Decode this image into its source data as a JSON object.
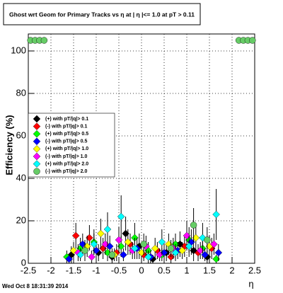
{
  "chart_data": {
    "type": "errorbar",
    "title": "Ghost wrt Geom for Primary Tracks vs  η at | η |<= 1.0 at pT > 0.11",
    "x_label": "η",
    "y_label": "Efficiency (%)",
    "footer": "Wed Oct  8 18:31:39 2014",
    "xlim": [
      -2.5,
      2.5
    ],
    "xticks": [
      -2.5,
      -2,
      -1.5,
      -1,
      -0.5,
      0,
      0.5,
      1,
      1.5,
      2,
      2.5
    ],
    "ylim": [
      0,
      108
    ],
    "yticks": [
      0,
      20,
      40,
      60,
      80,
      100
    ],
    "grid": true,
    "series": [
      {
        "name": "(+) with pT/|q|> 0.1",
        "color": "#000000",
        "marker": "diamond",
        "x": [
          -1.55,
          -1.25,
          -0.95,
          -0.65,
          -0.35,
          -0.05,
          0.25,
          0.55,
          0.85,
          1.15,
          1.45
        ],
        "values": [
          4,
          6,
          5,
          3,
          14,
          8,
          2,
          5,
          9,
          6,
          3
        ],
        "errors": [
          4,
          5,
          4,
          3,
          8,
          6,
          2,
          4,
          6,
          5,
          3
        ]
      },
      {
        "name": "(-) with pT/|q|> 0.1",
        "color": "#ff0000",
        "marker": "diamond",
        "x": [
          -1.45,
          -1.15,
          -0.85,
          -0.55,
          -0.25,
          0.05,
          0.35,
          0.65,
          0.95,
          1.25,
          1.55
        ],
        "values": [
          13,
          12,
          7,
          5,
          9,
          4,
          6,
          3,
          8,
          5,
          7
        ],
        "errors": [
          6,
          6,
          5,
          4,
          5,
          3,
          4,
          3,
          5,
          4,
          5
        ]
      },
      {
        "name": "(+) with pT/|q|> 0.5",
        "color": "#00ff00",
        "marker": "diamond",
        "x": [
          -1.65,
          -1.35,
          -1.05,
          -0.75,
          -0.45,
          -0.15,
          0.15,
          0.45,
          0.75,
          1.05,
          1.35,
          1.65
        ],
        "values": [
          3,
          7,
          10,
          5,
          8,
          12,
          6,
          4,
          9,
          11,
          7,
          2
        ],
        "errors": [
          3,
          5,
          6,
          4,
          5,
          7,
          4,
          3,
          5,
          6,
          5,
          2
        ]
      },
      {
        "name": "(-) with pT/|q|> 0.5",
        "color": "#0000ff",
        "marker": "diamond",
        "x": [
          -1.6,
          -1.3,
          -1.0,
          -0.7,
          -0.4,
          -0.1,
          0.2,
          0.5,
          0.8,
          1.1,
          1.4,
          1.7
        ],
        "values": [
          2,
          9,
          6,
          8,
          4,
          7,
          3,
          5,
          6,
          10,
          4,
          5
        ],
        "errors": [
          2,
          5,
          4,
          5,
          3,
          5,
          3,
          4,
          4,
          6,
          3,
          4
        ]
      },
      {
        "name": "(+) with pT/|q|> 1.0",
        "color": "#ffff00",
        "marker": "diamond",
        "x": [
          -1.5,
          -1.2,
          -0.9,
          -0.6,
          -0.3,
          0.0,
          0.3,
          0.6,
          0.9,
          1.2,
          1.5
        ],
        "values": [
          6,
          8,
          14,
          4,
          10,
          5,
          7,
          9,
          6,
          12,
          8
        ],
        "errors": [
          4,
          5,
          7,
          3,
          6,
          4,
          5,
          5,
          4,
          7,
          5
        ]
      },
      {
        "name": "(-) with pT/|q|> 1.0",
        "color": "#ff00ff",
        "marker": "diamond",
        "x": [
          -1.4,
          -1.1,
          -0.8,
          -0.5,
          -0.2,
          0.1,
          0.4,
          0.7,
          1.0,
          1.3,
          1.6
        ],
        "values": [
          5,
          3,
          9,
          11,
          6,
          8,
          4,
          7,
          13,
          6,
          9
        ],
        "errors": [
          4,
          3,
          5,
          6,
          4,
          5,
          3,
          5,
          7,
          4,
          5
        ]
      },
      {
        "name": "(+) with pT/|q|> 2.0",
        "color": "#00ffff",
        "marker": "diamond",
        "x": [
          -1.35,
          -1.05,
          -0.75,
          -0.45,
          -0.15,
          0.15,
          0.45,
          0.75,
          1.05,
          1.35,
          1.65
        ],
        "values": [
          4,
          9,
          16,
          22,
          7,
          3,
          10,
          5,
          8,
          12,
          23
        ],
        "errors": [
          3,
          5,
          8,
          10,
          5,
          3,
          6,
          4,
          5,
          7,
          12
        ]
      },
      {
        "name": "(-) with pT/|q|> 2.0",
        "color": "#66cc66",
        "marker": "circle",
        "x": [
          -2.45,
          -2.35,
          -2.25,
          -2.15,
          -1.25,
          -0.65,
          0.05,
          0.65,
          1.15,
          1.45,
          2.15,
          2.25,
          2.35,
          2.45
        ],
        "values": [
          105,
          105,
          105,
          105,
          6,
          4,
          9,
          7,
          18,
          11,
          105,
          105,
          105,
          105
        ],
        "errors": [
          0,
          0,
          0,
          0,
          4,
          3,
          5,
          4,
          8,
          6,
          0,
          0,
          0,
          0
        ]
      }
    ]
  }
}
